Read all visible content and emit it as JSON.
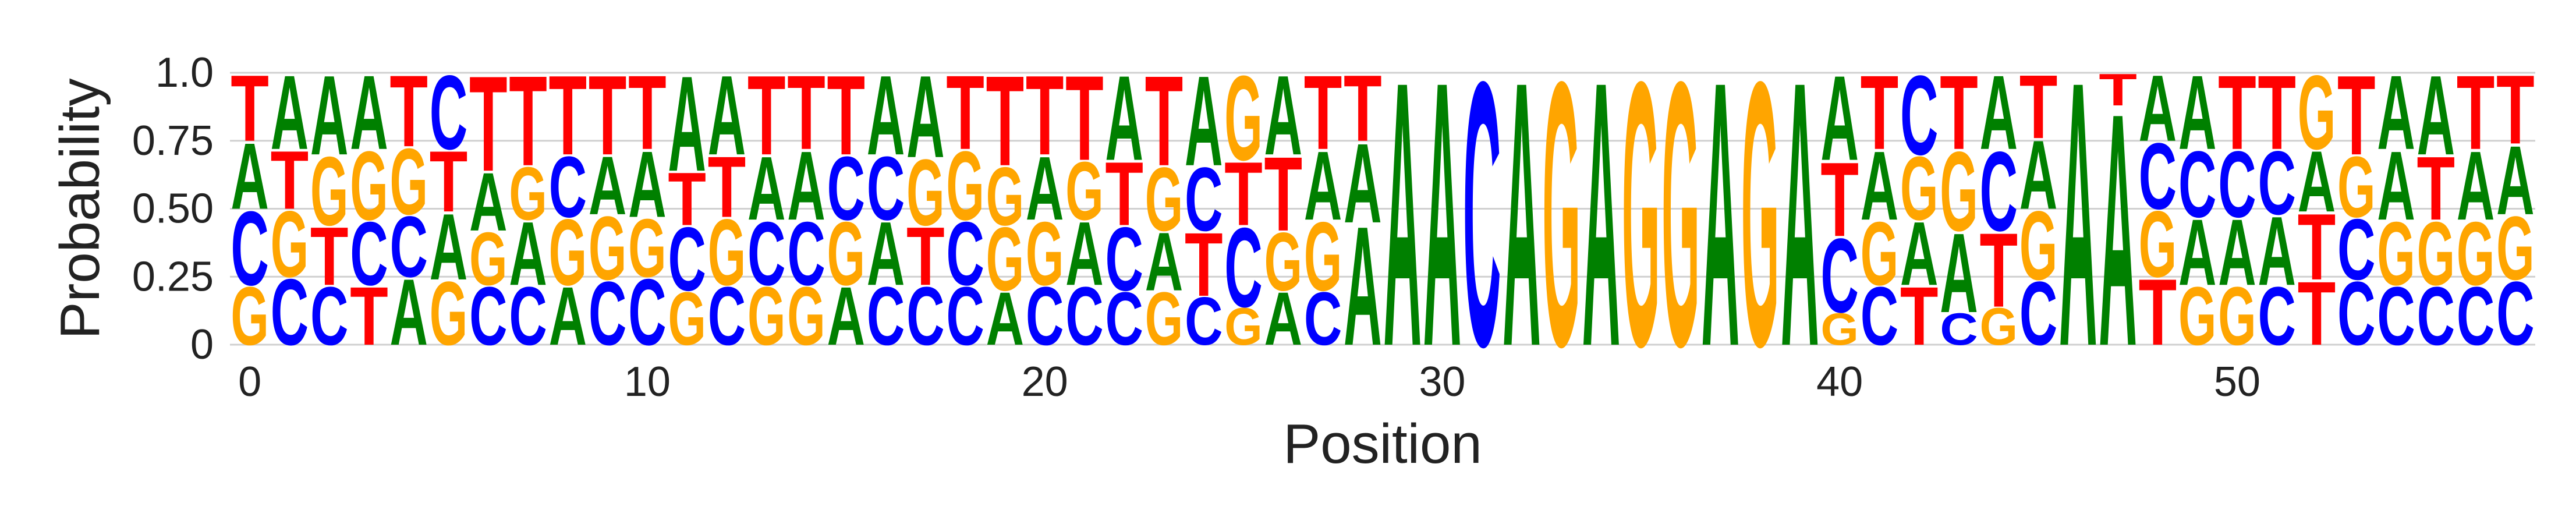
{
  "chart_data": {
    "type": "sequence-logo",
    "xlabel": "Position",
    "ylabel": "Probability",
    "xlim": [
      0,
      58
    ],
    "ylim": [
      0,
      1
    ],
    "grid": "horizontal",
    "x_ticks": [
      0,
      10,
      20,
      30,
      40,
      50
    ],
    "y_ticks": [
      {
        "value": 0,
        "label": "0"
      },
      {
        "value": 0.25,
        "label": "0.25"
      },
      {
        "value": 0.5,
        "label": "0.50"
      },
      {
        "value": 0.75,
        "label": "0.75"
      },
      {
        "value": 1.0,
        "label": "1.0"
      }
    ],
    "colors": {
      "A": "#008000",
      "C": "#0000ff",
      "G": "#ffa500",
      "T": "#ff0000"
    },
    "positions": [
      {
        "x": 0,
        "stack": [
          [
            "G",
            0.22
          ],
          [
            "C",
            0.28
          ],
          [
            "A",
            0.25
          ],
          [
            "T",
            0.25
          ]
        ]
      },
      {
        "x": 1,
        "stack": [
          [
            "C",
            0.25
          ],
          [
            "G",
            0.25
          ],
          [
            "T",
            0.22
          ],
          [
            "A",
            0.28
          ]
        ]
      },
      {
        "x": 2,
        "stack": [
          [
            "C",
            0.22
          ],
          [
            "T",
            0.22
          ],
          [
            "G",
            0.26
          ],
          [
            "A",
            0.3
          ]
        ]
      },
      {
        "x": 3,
        "stack": [
          [
            "T",
            0.22
          ],
          [
            "C",
            0.24
          ],
          [
            "G",
            0.26
          ],
          [
            "A",
            0.28
          ]
        ]
      },
      {
        "x": 4,
        "stack": [
          [
            "A",
            0.25
          ],
          [
            "C",
            0.23
          ],
          [
            "G",
            0.25
          ],
          [
            "T",
            0.27
          ]
        ]
      },
      {
        "x": 5,
        "stack": [
          [
            "G",
            0.24
          ],
          [
            "A",
            0.25
          ],
          [
            "T",
            0.23
          ],
          [
            "C",
            0.28
          ]
        ]
      },
      {
        "x": 6,
        "stack": [
          [
            "C",
            0.22
          ],
          [
            "G",
            0.2
          ],
          [
            "A",
            0.22
          ],
          [
            "T",
            0.36
          ]
        ]
      },
      {
        "x": 7,
        "stack": [
          [
            "C",
            0.22
          ],
          [
            "A",
            0.24
          ],
          [
            "G",
            0.2
          ],
          [
            "T",
            0.34
          ]
        ]
      },
      {
        "x": 8,
        "stack": [
          [
            "A",
            0.22
          ],
          [
            "G",
            0.25
          ],
          [
            "C",
            0.23
          ],
          [
            "T",
            0.3
          ]
        ]
      },
      {
        "x": 9,
        "stack": [
          [
            "C",
            0.24
          ],
          [
            "G",
            0.24
          ],
          [
            "A",
            0.22
          ],
          [
            "T",
            0.3
          ]
        ]
      },
      {
        "x": 10,
        "stack": [
          [
            "C",
            0.25
          ],
          [
            "G",
            0.22
          ],
          [
            "A",
            0.25
          ],
          [
            "T",
            0.28
          ]
        ]
      },
      {
        "x": 11,
        "stack": [
          [
            "G",
            0.2
          ],
          [
            "C",
            0.24
          ],
          [
            "T",
            0.2
          ],
          [
            "A",
            0.36
          ]
        ]
      },
      {
        "x": 12,
        "stack": [
          [
            "C",
            0.22
          ],
          [
            "G",
            0.25
          ],
          [
            "T",
            0.23
          ],
          [
            "A",
            0.3
          ]
        ]
      },
      {
        "x": 13,
        "stack": [
          [
            "G",
            0.22
          ],
          [
            "C",
            0.24
          ],
          [
            "A",
            0.24
          ],
          [
            "T",
            0.3
          ]
        ]
      },
      {
        "x": 14,
        "stack": [
          [
            "G",
            0.22
          ],
          [
            "C",
            0.24
          ],
          [
            "A",
            0.26
          ],
          [
            "T",
            0.28
          ]
        ]
      },
      {
        "x": 15,
        "stack": [
          [
            "A",
            0.22
          ],
          [
            "G",
            0.24
          ],
          [
            "C",
            0.24
          ],
          [
            "T",
            0.3
          ]
        ]
      },
      {
        "x": 16,
        "stack": [
          [
            "C",
            0.22
          ],
          [
            "A",
            0.24
          ],
          [
            "C",
            0.24
          ],
          [
            "A",
            0.3
          ]
        ]
      },
      {
        "x": 17,
        "stack": [
          [
            "C",
            0.22
          ],
          [
            "T",
            0.22
          ],
          [
            "G",
            0.25
          ],
          [
            "A",
            0.31
          ]
        ]
      },
      {
        "x": 18,
        "stack": [
          [
            "C",
            0.22
          ],
          [
            "C",
            0.24
          ],
          [
            "G",
            0.26
          ],
          [
            "T",
            0.28
          ]
        ]
      },
      {
        "x": 19,
        "stack": [
          [
            "A",
            0.2
          ],
          [
            "G",
            0.24
          ],
          [
            "G",
            0.22
          ],
          [
            "T",
            0.34
          ]
        ]
      },
      {
        "x": 20,
        "stack": [
          [
            "C",
            0.22
          ],
          [
            "G",
            0.24
          ],
          [
            "A",
            0.24
          ],
          [
            "T",
            0.3
          ]
        ]
      },
      {
        "x": 21,
        "stack": [
          [
            "C",
            0.22
          ],
          [
            "A",
            0.24
          ],
          [
            "G",
            0.22
          ],
          [
            "T",
            0.32
          ]
        ]
      },
      {
        "x": 22,
        "stack": [
          [
            "C",
            0.2
          ],
          [
            "C",
            0.24
          ],
          [
            "T",
            0.24
          ],
          [
            "A",
            0.32
          ]
        ]
      },
      {
        "x": 23,
        "stack": [
          [
            "G",
            0.2
          ],
          [
            "A",
            0.22
          ],
          [
            "G",
            0.24
          ],
          [
            "T",
            0.34
          ]
        ]
      },
      {
        "x": 24,
        "stack": [
          [
            "C",
            0.18
          ],
          [
            "T",
            0.24
          ],
          [
            "C",
            0.24
          ],
          [
            "A",
            0.34
          ]
        ]
      },
      {
        "x": 25,
        "stack": [
          [
            "G",
            0.14
          ],
          [
            "C",
            0.3
          ],
          [
            "T",
            0.24
          ],
          [
            "G",
            0.32
          ]
        ]
      },
      {
        "x": 26,
        "stack": [
          [
            "A",
            0.2
          ],
          [
            "G",
            0.22
          ],
          [
            "T",
            0.28
          ],
          [
            "A",
            0.3
          ]
        ]
      },
      {
        "x": 27,
        "stack": [
          [
            "C",
            0.2
          ],
          [
            "G",
            0.26
          ],
          [
            "A",
            0.26
          ],
          [
            "T",
            0.28
          ]
        ]
      },
      {
        "x": 28,
        "stack": [
          [
            "A",
            0.45
          ],
          [
            "A",
            0.3
          ],
          [
            "T",
            0.25
          ]
        ]
      },
      {
        "x": 29,
        "stack": [
          [
            "A",
            1.0
          ]
        ]
      },
      {
        "x": 30,
        "stack": [
          [
            "A",
            1.0
          ]
        ]
      },
      {
        "x": 31,
        "stack": [
          [
            "C",
            1.0
          ]
        ]
      },
      {
        "x": 32,
        "stack": [
          [
            "A",
            1.0
          ]
        ]
      },
      {
        "x": 33,
        "stack": [
          [
            "G",
            1.0
          ]
        ]
      },
      {
        "x": 34,
        "stack": [
          [
            "A",
            1.0
          ]
        ]
      },
      {
        "x": 35,
        "stack": [
          [
            "G",
            1.0
          ]
        ]
      },
      {
        "x": 36,
        "stack": [
          [
            "G",
            1.0
          ]
        ]
      },
      {
        "x": 37,
        "stack": [
          [
            "A",
            1.0
          ]
        ]
      },
      {
        "x": 38,
        "stack": [
          [
            "G",
            1.0
          ]
        ]
      },
      {
        "x": 39,
        "stack": [
          [
            "A",
            1.0
          ]
        ]
      },
      {
        "x": 40,
        "stack": [
          [
            "G",
            0.12
          ],
          [
            "C",
            0.28
          ],
          [
            "T",
            0.28
          ],
          [
            "A",
            0.32
          ]
        ]
      },
      {
        "x": 41,
        "stack": [
          [
            "C",
            0.22
          ],
          [
            "G",
            0.24
          ],
          [
            "A",
            0.26
          ],
          [
            "T",
            0.28
          ]
        ]
      },
      {
        "x": 42,
        "stack": [
          [
            "T",
            0.22
          ],
          [
            "A",
            0.24
          ],
          [
            "G",
            0.24
          ],
          [
            "C",
            0.3
          ]
        ]
      },
      {
        "x": 43,
        "stack": [
          [
            "C",
            0.12
          ],
          [
            "A",
            0.3
          ],
          [
            "G",
            0.3
          ],
          [
            "T",
            0.28
          ]
        ]
      },
      {
        "x": 44,
        "stack": [
          [
            "G",
            0.14
          ],
          [
            "T",
            0.28
          ],
          [
            "C",
            0.3
          ],
          [
            "A",
            0.28
          ]
        ]
      },
      {
        "x": 45,
        "stack": [
          [
            "C",
            0.24
          ],
          [
            "G",
            0.26
          ],
          [
            "A",
            0.26
          ],
          [
            "T",
            0.24
          ]
        ]
      },
      {
        "x": 46,
        "stack": [
          [
            "A",
            1.0
          ]
        ]
      },
      {
        "x": 47,
        "stack": [
          [
            "A",
            0.88
          ],
          [
            "T",
            0.12
          ]
        ]
      },
      {
        "x": 48,
        "stack": [
          [
            "T",
            0.25
          ],
          [
            "G",
            0.25
          ],
          [
            "C",
            0.25
          ],
          [
            "A",
            0.25
          ]
        ]
      },
      {
        "x": 49,
        "stack": [
          [
            "G",
            0.22
          ],
          [
            "A",
            0.25
          ],
          [
            "C",
            0.25
          ],
          [
            "A",
            0.28
          ]
        ]
      },
      {
        "x": 50,
        "stack": [
          [
            "G",
            0.22
          ],
          [
            "A",
            0.25
          ],
          [
            "C",
            0.25
          ],
          [
            "T",
            0.28
          ]
        ]
      },
      {
        "x": 51,
        "stack": [
          [
            "C",
            0.22
          ],
          [
            "A",
            0.26
          ],
          [
            "C",
            0.24
          ],
          [
            "T",
            0.28
          ]
        ]
      },
      {
        "x": 52,
        "stack": [
          [
            "T",
            0.24
          ],
          [
            "T",
            0.25
          ],
          [
            "A",
            0.23
          ],
          [
            "G",
            0.28
          ]
        ]
      },
      {
        "x": 53,
        "stack": [
          [
            "C",
            0.24
          ],
          [
            "C",
            0.23
          ],
          [
            "G",
            0.23
          ],
          [
            "T",
            0.3
          ]
        ]
      },
      {
        "x": 54,
        "stack": [
          [
            "C",
            0.22
          ],
          [
            "G",
            0.24
          ],
          [
            "A",
            0.26
          ],
          [
            "A",
            0.28
          ]
        ]
      },
      {
        "x": 55,
        "stack": [
          [
            "C",
            0.22
          ],
          [
            "G",
            0.24
          ],
          [
            "T",
            0.24
          ],
          [
            "A",
            0.3
          ]
        ]
      },
      {
        "x": 56,
        "stack": [
          [
            "C",
            0.22
          ],
          [
            "G",
            0.24
          ],
          [
            "A",
            0.26
          ],
          [
            "T",
            0.28
          ]
        ]
      },
      {
        "x": 57,
        "stack": [
          [
            "C",
            0.24
          ],
          [
            "G",
            0.24
          ],
          [
            "A",
            0.26
          ],
          [
            "T",
            0.26
          ]
        ]
      }
    ]
  }
}
